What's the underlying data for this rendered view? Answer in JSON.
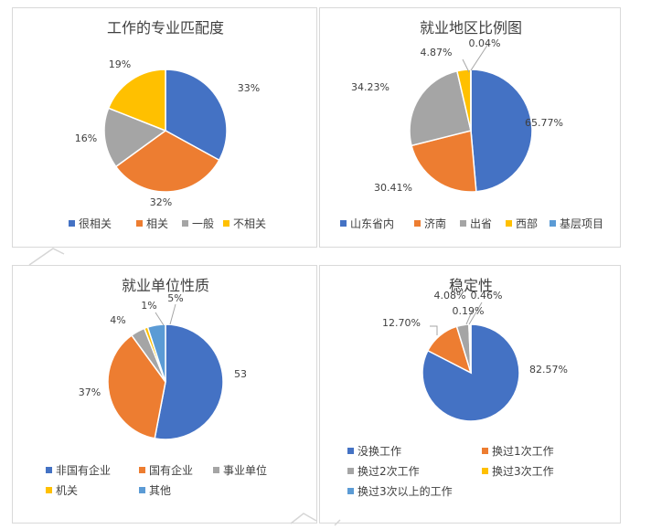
{
  "chart_data": [
    {
      "type": "pie",
      "title": "工作的专业匹配度",
      "slices": [
        {
          "name": "很相关",
          "value": 33,
          "label": "33%",
          "color": "#4472c4"
        },
        {
          "name": "相关",
          "value": 32,
          "label": "32%",
          "color": "#ed7d31"
        },
        {
          "name": "一般",
          "value": 16,
          "label": "16%",
          "color": "#a5a5a5"
        },
        {
          "name": "不相关",
          "value": 19,
          "label": "19%",
          "color": "#ffc000"
        }
      ],
      "legend_position": "bottom"
    },
    {
      "type": "pie",
      "title": "就业地区比例图",
      "slices": [
        {
          "name": "山东省内",
          "value": 65.77,
          "label": "65.77%",
          "color": "#4472c4"
        },
        {
          "name": "济南",
          "value": 30.41,
          "label": "30.41%",
          "color": "#ed7d31"
        },
        {
          "name": "出省",
          "value": 34.23,
          "label": "34.23%",
          "color": "#a5a5a5"
        },
        {
          "name": "西部",
          "value": 4.87,
          "label": "4.87%",
          "color": "#ffc000"
        },
        {
          "name": "基层项目",
          "value": 0.04,
          "label": "0.04%",
          "color": "#5b9bd5"
        }
      ],
      "legend_position": "bottom"
    },
    {
      "type": "pie",
      "title": "就业单位性质",
      "slices": [
        {
          "name": "非国有企业",
          "value": 53,
          "label": "53",
          "color": "#4472c4"
        },
        {
          "name": "国有企业",
          "value": 37,
          "label": "37%",
          "color": "#ed7d31"
        },
        {
          "name": "事业单位",
          "value": 4,
          "label": "4%",
          "color": "#a5a5a5"
        },
        {
          "name": "机关",
          "value": 1,
          "label": "1%",
          "color": "#ffc000"
        },
        {
          "name": "其他",
          "value": 5,
          "label": "5%",
          "color": "#5b9bd5"
        }
      ],
      "legend_position": "bottom"
    },
    {
      "type": "pie",
      "title": "稳定性",
      "slices": [
        {
          "name": "没换工作",
          "value": 82.57,
          "label": "82.57%",
          "color": "#4472c4"
        },
        {
          "name": "换过1次工作",
          "value": 12.7,
          "label": "12.70%",
          "color": "#ed7d31"
        },
        {
          "name": "换过2次工作",
          "value": 4.08,
          "label": "4.08%",
          "color": "#a5a5a5"
        },
        {
          "name": "换过3次工作",
          "value": 0.19,
          "label": "0.19%",
          "color": "#ffc000"
        },
        {
          "name": "换过3次以上的工作",
          "value": 0.46,
          "label": "0.46%",
          "color": "#5b9bd5"
        }
      ],
      "legend_position": "bottom"
    }
  ]
}
